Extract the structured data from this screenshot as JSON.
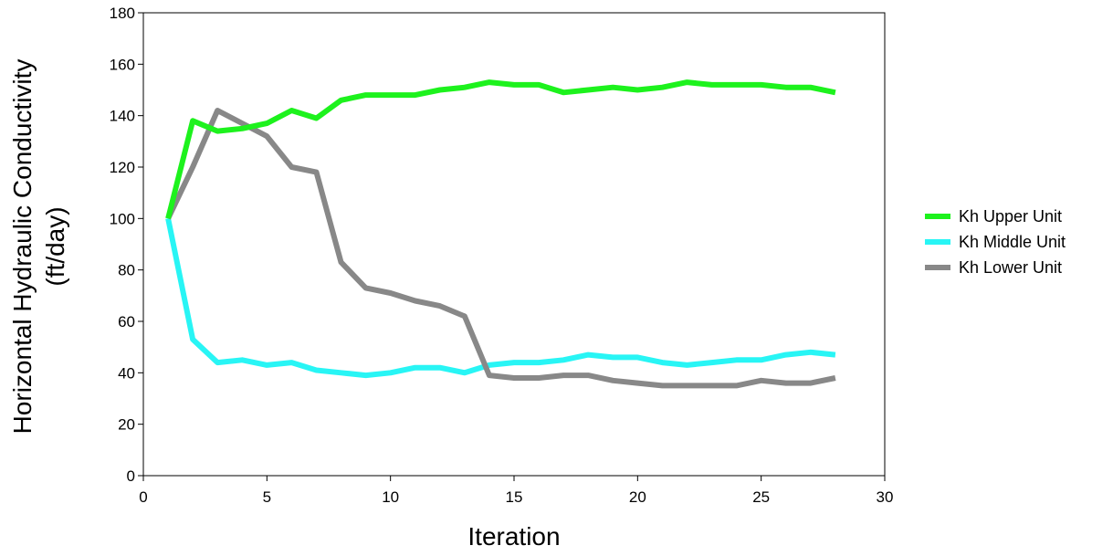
{
  "chart_data": {
    "type": "line",
    "xlabel": "Iteration",
    "ylabel": [
      "Horizontal Hydraulic Conductivity",
      "(ft/day)"
    ],
    "xlim": [
      0,
      30
    ],
    "ylim": [
      0,
      180
    ],
    "xticks": [
      0,
      5,
      10,
      15,
      20,
      25,
      30
    ],
    "yticks": [
      0,
      20,
      40,
      60,
      80,
      100,
      120,
      140,
      160,
      180
    ],
    "grid": false,
    "legend_position": "right",
    "x": [
      1,
      2,
      3,
      4,
      5,
      6,
      7,
      8,
      9,
      10,
      11,
      12,
      13,
      14,
      15,
      16,
      17,
      18,
      19,
      20,
      21,
      22,
      23,
      24,
      25,
      26,
      27,
      28
    ],
    "series": [
      {
        "name": "Kh Upper Unit",
        "color": "#1df21d",
        "values": [
          100,
          138,
          134,
          135,
          137,
          142,
          139,
          146,
          148,
          148,
          148,
          150,
          151,
          153,
          152,
          152,
          149,
          150,
          151,
          150,
          151,
          153,
          152,
          152,
          152,
          151,
          151,
          149
        ]
      },
      {
        "name": "Kh Middle Unit",
        "color": "#28f5f5",
        "values": [
          100,
          53,
          44,
          45,
          43,
          44,
          41,
          40,
          39,
          40,
          42,
          42,
          40,
          43,
          44,
          44,
          45,
          47,
          46,
          46,
          44,
          43,
          44,
          45,
          45,
          47,
          48,
          47
        ]
      },
      {
        "name": "Kh Lower Unit",
        "color": "#888888",
        "values": [
          100,
          120,
          142,
          137,
          132,
          120,
          118,
          83,
          73,
          71,
          68,
          66,
          62,
          39,
          38,
          38,
          39,
          39,
          37,
          36,
          35,
          35,
          35,
          35,
          37,
          36,
          36,
          38
        ]
      }
    ]
  }
}
